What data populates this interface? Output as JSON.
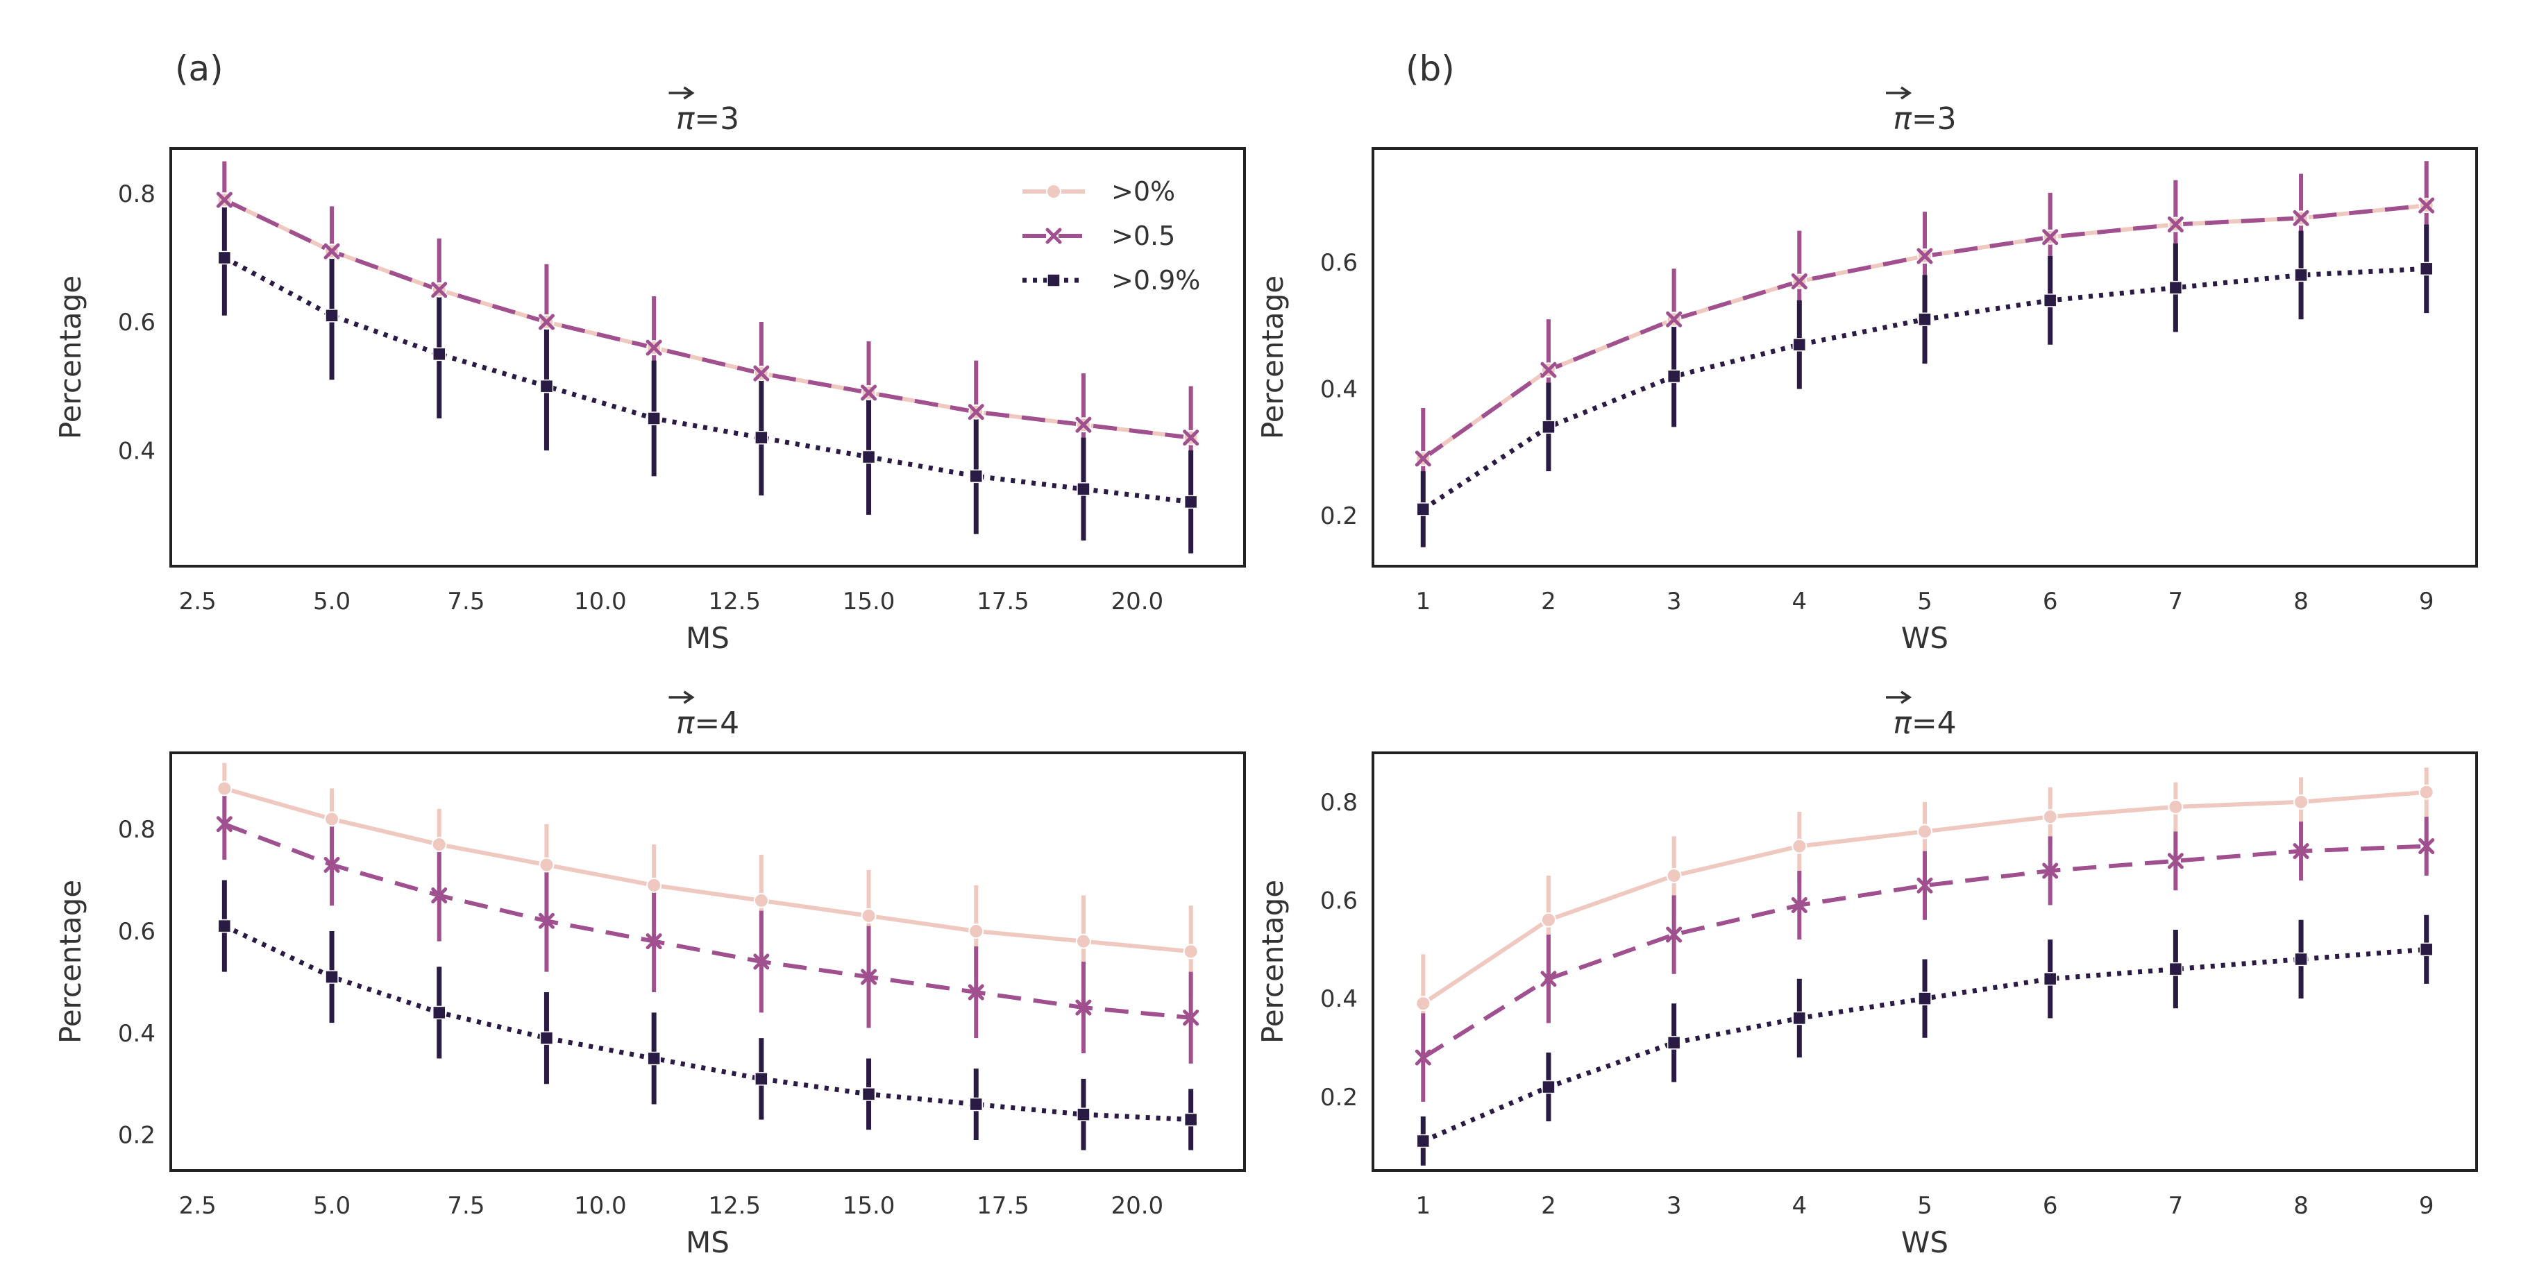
{
  "figure": {
    "panel_labels": [
      "(a)",
      "(b)"
    ]
  },
  "legend_entries": [
    ">0%",
    ">0.5",
    ">0.9%"
  ],
  "colors": {
    "s0": "#efc8c0",
    "s1": "#a0508f",
    "s2": "#2a1b45",
    "axis": "#222222",
    "text": "#333333"
  },
  "chart_data": [
    {
      "id": "a-top",
      "type": "line",
      "title": "π=3",
      "title_symbol": "π",
      "title_suffix": "=3",
      "xlabel": "MS",
      "ylabel": "Percentage",
      "xlim": [
        2.0,
        22.0
      ],
      "ylim": [
        0.22,
        0.87
      ],
      "xticks": [
        2.5,
        5.0,
        7.5,
        10.0,
        12.5,
        15.0,
        17.5,
        20.0
      ],
      "xtick_labels": [
        "2.5",
        "5.0",
        "7.5",
        "10.0",
        "12.5",
        "15.0",
        "17.5",
        "20.0"
      ],
      "yticks": [
        0.4,
        0.6,
        0.8
      ],
      "ytick_labels": [
        "0.4",
        "0.6",
        "0.8"
      ],
      "x": [
        3,
        5,
        7,
        9,
        11,
        13,
        15,
        17,
        19,
        21
      ],
      "legend": true,
      "legend_position": "top-right",
      "series": [
        {
          "name": ">0%",
          "values": [
            0.79,
            0.71,
            0.65,
            0.6,
            0.56,
            0.52,
            0.49,
            0.46,
            0.44,
            0.42
          ],
          "error": [
            0.06,
            0.07,
            0.08,
            0.09,
            0.08,
            0.08,
            0.08,
            0.08,
            0.08,
            0.08
          ]
        },
        {
          "name": ">0.5",
          "values": [
            0.79,
            0.71,
            0.65,
            0.6,
            0.56,
            0.52,
            0.49,
            0.46,
            0.44,
            0.42
          ],
          "error": [
            0.06,
            0.07,
            0.08,
            0.09,
            0.08,
            0.08,
            0.08,
            0.08,
            0.08,
            0.08
          ]
        },
        {
          "name": ">0.9%",
          "values": [
            0.7,
            0.61,
            0.55,
            0.5,
            0.45,
            0.42,
            0.39,
            0.36,
            0.34,
            0.32
          ],
          "error": [
            0.09,
            0.1,
            0.1,
            0.1,
            0.09,
            0.09,
            0.09,
            0.09,
            0.08,
            0.08
          ]
        }
      ]
    },
    {
      "id": "b-top",
      "type": "line",
      "title": "π=3",
      "title_symbol": "π",
      "title_suffix": "=3",
      "xlabel": "WS",
      "ylabel": "Percentage",
      "xlim": [
        0.6,
        9.4
      ],
      "ylim": [
        0.12,
        0.78
      ],
      "xticks": [
        1,
        2,
        3,
        4,
        5,
        6,
        7,
        8,
        9
      ],
      "xtick_labels": [
        "1",
        "2",
        "3",
        "4",
        "5",
        "6",
        "7",
        "8",
        "9"
      ],
      "yticks": [
        0.2,
        0.4,
        0.6
      ],
      "ytick_labels": [
        "0.2",
        "0.4",
        "0.6"
      ],
      "x": [
        1,
        2,
        3,
        4,
        5,
        6,
        7,
        8,
        9
      ],
      "legend": false,
      "series": [
        {
          "name": ">0%",
          "values": [
            0.29,
            0.43,
            0.51,
            0.57,
            0.61,
            0.64,
            0.66,
            0.67,
            0.69
          ],
          "error": [
            0.08,
            0.08,
            0.08,
            0.08,
            0.07,
            0.07,
            0.07,
            0.07,
            0.07
          ]
        },
        {
          "name": ">0.5",
          "values": [
            0.29,
            0.43,
            0.51,
            0.57,
            0.61,
            0.64,
            0.66,
            0.67,
            0.69
          ],
          "error": [
            0.08,
            0.08,
            0.08,
            0.08,
            0.07,
            0.07,
            0.07,
            0.07,
            0.07
          ]
        },
        {
          "name": ">0.9%",
          "values": [
            0.21,
            0.34,
            0.42,
            0.47,
            0.51,
            0.54,
            0.56,
            0.58,
            0.59
          ],
          "error": [
            0.06,
            0.07,
            0.08,
            0.07,
            0.07,
            0.07,
            0.07,
            0.07,
            0.07
          ]
        }
      ]
    },
    {
      "id": "a-bottom",
      "type": "line",
      "title": "π=4",
      "title_symbol": "π",
      "title_suffix": "=4",
      "xlabel": "MS",
      "ylabel": "Percentage",
      "xlim": [
        2.0,
        22.0
      ],
      "ylim": [
        0.13,
        0.95
      ],
      "xticks": [
        2.5,
        5.0,
        7.5,
        10.0,
        12.5,
        15.0,
        17.5,
        20.0
      ],
      "xtick_labels": [
        "2.5",
        "5.0",
        "7.5",
        "10.0",
        "12.5",
        "15.0",
        "17.5",
        "20.0"
      ],
      "yticks": [
        0.2,
        0.4,
        0.6,
        0.8
      ],
      "ytick_labels": [
        "0.2",
        "0.4",
        "0.6",
        "0.8"
      ],
      "x": [
        3,
        5,
        7,
        9,
        11,
        13,
        15,
        17,
        19,
        21
      ],
      "legend": false,
      "series": [
        {
          "name": ">0%",
          "values": [
            0.88,
            0.82,
            0.77,
            0.73,
            0.69,
            0.66,
            0.63,
            0.6,
            0.58,
            0.56
          ],
          "error": [
            0.05,
            0.06,
            0.07,
            0.08,
            0.08,
            0.09,
            0.09,
            0.09,
            0.09,
            0.09
          ]
        },
        {
          "name": ">0.5",
          "values": [
            0.81,
            0.73,
            0.67,
            0.62,
            0.58,
            0.54,
            0.51,
            0.48,
            0.45,
            0.43
          ],
          "error": [
            0.07,
            0.08,
            0.09,
            0.1,
            0.1,
            0.1,
            0.1,
            0.09,
            0.09,
            0.09
          ]
        },
        {
          "name": ">0.9%",
          "values": [
            0.61,
            0.51,
            0.44,
            0.39,
            0.35,
            0.31,
            0.28,
            0.26,
            0.24,
            0.23
          ],
          "error": [
            0.09,
            0.09,
            0.09,
            0.09,
            0.09,
            0.08,
            0.07,
            0.07,
            0.07,
            0.06
          ]
        }
      ]
    },
    {
      "id": "b-bottom",
      "type": "line",
      "title": "π=4",
      "title_symbol": "π",
      "title_suffix": "=4",
      "xlabel": "WS",
      "ylabel": "Percentage",
      "xlim": [
        0.6,
        9.4
      ],
      "ylim": [
        0.05,
        0.9
      ],
      "xticks": [
        1,
        2,
        3,
        4,
        5,
        6,
        7,
        8,
        9
      ],
      "xtick_labels": [
        "1",
        "2",
        "3",
        "4",
        "5",
        "6",
        "7",
        "8",
        "9"
      ],
      "yticks": [
        0.2,
        0.4,
        0.6,
        0.8
      ],
      "ytick_labels": [
        "0.2",
        "0.4",
        "0.6",
        "0.8"
      ],
      "x": [
        1,
        2,
        3,
        4,
        5,
        6,
        7,
        8,
        9
      ],
      "legend": false,
      "series": [
        {
          "name": ">0%",
          "values": [
            0.39,
            0.56,
            0.65,
            0.71,
            0.74,
            0.77,
            0.79,
            0.8,
            0.82
          ],
          "error": [
            0.1,
            0.09,
            0.08,
            0.07,
            0.06,
            0.06,
            0.05,
            0.05,
            0.05
          ]
        },
        {
          "name": ">0.5",
          "values": [
            0.28,
            0.44,
            0.53,
            0.59,
            0.63,
            0.66,
            0.68,
            0.7,
            0.71
          ],
          "error": [
            0.09,
            0.09,
            0.08,
            0.07,
            0.07,
            0.07,
            0.06,
            0.06,
            0.06
          ]
        },
        {
          "name": ">0.9%",
          "values": [
            0.11,
            0.22,
            0.31,
            0.36,
            0.4,
            0.44,
            0.46,
            0.48,
            0.5
          ],
          "error": [
            0.05,
            0.07,
            0.08,
            0.08,
            0.08,
            0.08,
            0.08,
            0.08,
            0.07
          ]
        }
      ]
    }
  ]
}
